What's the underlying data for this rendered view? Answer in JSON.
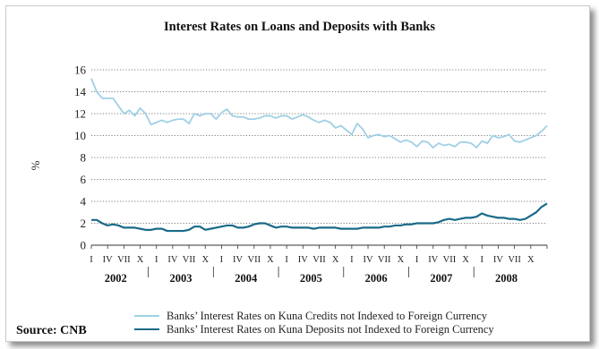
{
  "source": "Source: CNB",
  "chart_data": {
    "type": "line",
    "title": "Interest Rates on Loans and Deposits with Banks",
    "xlabel": "",
    "ylabel": "%",
    "ylim": [
      0,
      16
    ],
    "yticks": [
      0,
      2,
      4,
      6,
      8,
      10,
      12,
      14,
      16
    ],
    "grid": "horizontal-dotted",
    "legend_position": "bottom",
    "x_start": "2002-01",
    "x_end": "2008-12",
    "quarter_labels": [
      "I",
      "IV",
      "VII",
      "X"
    ],
    "years": [
      "2002",
      "2003",
      "2004",
      "2005",
      "2006",
      "2007",
      "2008"
    ],
    "series": [
      {
        "name": "Banks’ Interest Rates on Kuna Credits not Indexed to Foreign Currency",
        "color": "#9fd0e6",
        "values": [
          15.2,
          14.0,
          13.4,
          13.4,
          13.4,
          12.7,
          12.0,
          12.3,
          11.8,
          12.5,
          12.0,
          11.0,
          11.2,
          11.4,
          11.2,
          11.4,
          11.5,
          11.5,
          11.1,
          12.0,
          11.8,
          12.0,
          12.0,
          11.5,
          12.1,
          12.4,
          11.8,
          11.7,
          11.7,
          11.5,
          11.5,
          11.6,
          11.8,
          11.8,
          11.6,
          11.8,
          11.8,
          11.5,
          11.7,
          11.9,
          11.7,
          11.4,
          11.2,
          11.4,
          11.2,
          10.7,
          10.9,
          10.5,
          10.1,
          11.1,
          10.6,
          9.8,
          10.0,
          10.1,
          9.9,
          10.0,
          9.7,
          9.4,
          9.6,
          9.4,
          9.0,
          9.5,
          9.4,
          8.9,
          9.3,
          9.1,
          9.2,
          9.0,
          9.4,
          9.4,
          9.3,
          8.9,
          9.5,
          9.3,
          10.0,
          9.8,
          9.9,
          10.1,
          9.5,
          9.4,
          9.6,
          9.8,
          10.0,
          10.4,
          10.9
        ]
      },
      {
        "name": "Banks’ Interest Rates on Kuna Deposits not Indexed to Foreign Currency",
        "color": "#1a6a88",
        "values": [
          2.3,
          2.3,
          2.0,
          1.8,
          1.9,
          1.8,
          1.6,
          1.6,
          1.6,
          1.5,
          1.4,
          1.4,
          1.5,
          1.5,
          1.3,
          1.3,
          1.3,
          1.3,
          1.4,
          1.7,
          1.7,
          1.4,
          1.5,
          1.6,
          1.7,
          1.8,
          1.8,
          1.6,
          1.6,
          1.7,
          1.9,
          2.0,
          2.0,
          1.8,
          1.6,
          1.7,
          1.7,
          1.6,
          1.6,
          1.6,
          1.6,
          1.5,
          1.6,
          1.6,
          1.6,
          1.6,
          1.5,
          1.5,
          1.5,
          1.5,
          1.6,
          1.6,
          1.6,
          1.6,
          1.7,
          1.7,
          1.8,
          1.8,
          1.9,
          1.9,
          2.0,
          2.0,
          2.0,
          2.0,
          2.1,
          2.3,
          2.4,
          2.3,
          2.4,
          2.5,
          2.5,
          2.6,
          2.9,
          2.7,
          2.6,
          2.5,
          2.5,
          2.4,
          2.4,
          2.3,
          2.4,
          2.7,
          3.0,
          3.5,
          3.8
        ]
      }
    ]
  }
}
